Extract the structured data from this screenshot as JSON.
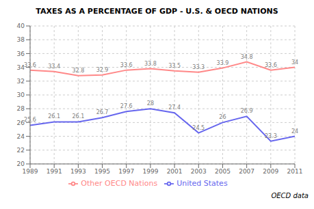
{
  "chart_data": {
    "type": "line",
    "title": "TAXES AS A PERCENTAGE OF GDP - U.S. & OECD NATIONS",
    "x": [
      1989,
      1991,
      1993,
      1995,
      1997,
      1999,
      2001,
      2003,
      2005,
      2007,
      2009,
      2011
    ],
    "series": [
      {
        "name": "Other OECD Nations",
        "color": "#FF8888",
        "values": [
          33.6,
          33.4,
          32.8,
          32.9,
          33.6,
          33.8,
          33.5,
          33.3,
          33.9,
          34.8,
          33.6,
          34.0
        ]
      },
      {
        "name": "United States",
        "color": "#6666EE",
        "values": [
          25.6,
          26.1,
          26.1,
          26.7,
          27.6,
          28.0,
          27.4,
          24.5,
          26.0,
          26.9,
          23.3,
          24.0
        ]
      }
    ],
    "xlim": [
      1989,
      2011
    ],
    "xticks": [
      1989,
      1991,
      1993,
      1995,
      1997,
      1999,
      2001,
      2003,
      2005,
      2007,
      2009,
      2011
    ],
    "ylim": [
      20,
      40
    ],
    "yticks": [
      20,
      22,
      24,
      26,
      28,
      30,
      32,
      34,
      36,
      38,
      40
    ],
    "grid": true,
    "legend": "bottom",
    "data_labels": true,
    "annotations": [
      "OECD data"
    ]
  }
}
